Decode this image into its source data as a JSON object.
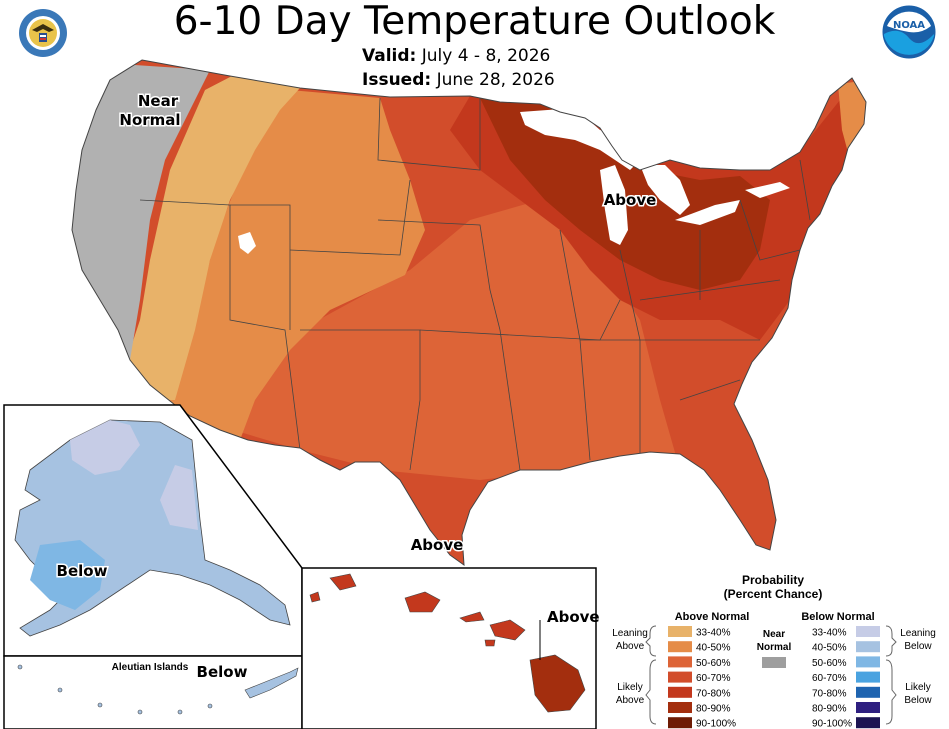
{
  "header": {
    "title": "6-10 Day Temperature Outlook",
    "valid_label": "Valid:",
    "valid_value": "July 4 - 8, 2026",
    "issued_label": "Issued:",
    "issued_value": "June 28, 2026"
  },
  "logos": {
    "left": "department-of-commerce-seal",
    "right": "noaa-logo",
    "right_text": "NOAA"
  },
  "map_labels": {
    "near_normal_line1": "Near",
    "near_normal_line2": "Normal",
    "above_great_lakes": "Above",
    "above_texas": "Above",
    "below_alaska": "Below",
    "aleutian_islands": "Aleutian Islands",
    "below_aleutians": "Below",
    "above_hawaii": "Above"
  },
  "legend": {
    "title_line1": "Probability",
    "title_line2": "(Percent Chance)",
    "above_header": "Above Normal",
    "below_header": "Below Normal",
    "near_label_line1": "Near",
    "near_label_line2": "Normal",
    "near_color": "#9e9e9e",
    "leaning_above_line1": "Leaning",
    "leaning_above_line2": "Above",
    "likely_above_line1": "Likely",
    "likely_above_line2": "Above",
    "leaning_below_line1": "Leaning",
    "leaning_below_line2": "Below",
    "likely_below_line1": "Likely",
    "likely_below_line2": "Below",
    "above_bins": [
      {
        "label": "33-40%",
        "color": "#e8b269"
      },
      {
        "label": "40-50%",
        "color": "#e58c48"
      },
      {
        "label": "50-60%",
        "color": "#dd6437"
      },
      {
        "label": "60-70%",
        "color": "#d24d2b"
      },
      {
        "label": "70-80%",
        "color": "#c3381d"
      },
      {
        "label": "80-90%",
        "color": "#a32e0e"
      },
      {
        "label": "90-100%",
        "color": "#6e1b04"
      }
    ],
    "below_bins": [
      {
        "label": "33-40%",
        "color": "#c6cce6"
      },
      {
        "label": "40-50%",
        "color": "#a6c2e1"
      },
      {
        "label": "50-60%",
        "color": "#7fb7e4"
      },
      {
        "label": "60-70%",
        "color": "#4aa3e0"
      },
      {
        "label": "70-80%",
        "color": "#1e64b0"
      },
      {
        "label": "80-90%",
        "color": "#2e1f80"
      },
      {
        "label": "90-100%",
        "color": "#1c1452"
      }
    ]
  }
}
